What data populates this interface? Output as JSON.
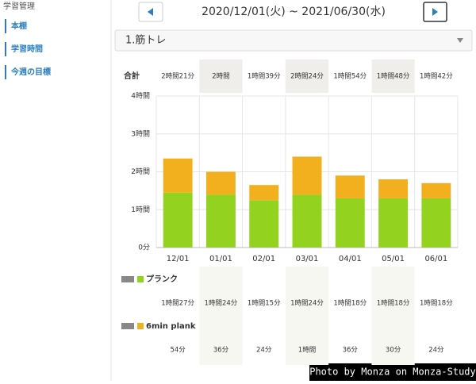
{
  "sidebar": {
    "heading": "学習管理",
    "items": [
      "本棚",
      "学習時間",
      "今週の目標"
    ]
  },
  "date_range": "2020/12/01(火) ~ 2021/06/30(水)",
  "selector": "1.筋トレ",
  "credit": "Photo by Monza on Monza-Study",
  "chart_data": {
    "type": "stacked_bar",
    "categories": [
      "12/01",
      "01/01",
      "02/01",
      "03/01",
      "04/01",
      "05/01",
      "06/01"
    ],
    "totals_label": "合計",
    "totals": [
      "2時間21分",
      "2時間",
      "1時間39分",
      "2時間24分",
      "1時間54分",
      "1時間48分",
      "1時間42分"
    ],
    "series": [
      {
        "name": "プランク",
        "color": "#93d31f",
        "values": [
          87,
          84,
          75,
          84,
          78,
          78,
          78
        ],
        "value_labels": [
          "1時間27分",
          "1時間24分",
          "1時間15分",
          "1時間24分",
          "1時間18分",
          "1時間18分",
          "1時間18分"
        ]
      },
      {
        "name": "6min plank",
        "color": "#f2b01e",
        "values": [
          54,
          36,
          24,
          60,
          36,
          30,
          24
        ],
        "value_labels": [
          "54分",
          "36分",
          "24分",
          "1時間",
          "36分",
          "30分",
          "24分"
        ]
      }
    ],
    "ylim": [
      0,
      240
    ],
    "yticks": [
      {
        "value": 0,
        "label": "0分"
      },
      {
        "value": 60,
        "label": "1時間"
      },
      {
        "value": 120,
        "label": "2時間"
      },
      {
        "value": 180,
        "label": "3時間"
      },
      {
        "value": 240,
        "label": "4時間"
      }
    ],
    "grid": true
  }
}
